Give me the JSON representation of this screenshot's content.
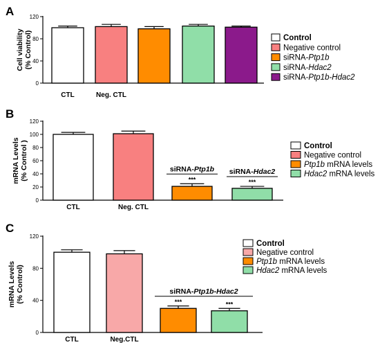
{
  "chart_data": [
    {
      "type": "bar",
      "panel_label": "A",
      "ylabel": [
        "Cell viability",
        "(% Control)"
      ],
      "ylim": [
        0,
        120
      ],
      "yticks": [
        0,
        40,
        80,
        120
      ],
      "categories": [
        "Control",
        "Negative control",
        "siRNA-Ptp1b",
        "siRNA-Hdac2",
        "siRNA-Ptp1b-Hdac2"
      ],
      "values": [
        100,
        102,
        98,
        103,
        101
      ],
      "errors": [
        3,
        4,
        4,
        3,
        2
      ],
      "colors": [
        "#ffffff",
        "#f88080",
        "#ff8c00",
        "#90dea8",
        "#8b1a8b"
      ],
      "xtick_labels": [
        {
          "text": "CTL",
          "bar": 0
        },
        {
          "text": "Neg. CTL",
          "bar": 1
        }
      ],
      "legend": [
        {
          "pre": "Control",
          "it": "",
          "post": "",
          "bold": true
        },
        {
          "pre": "Negative control",
          "it": "",
          "post": ""
        },
        {
          "pre": "siRNA-",
          "it": "Ptp1b",
          "post": ""
        },
        {
          "pre": "siRNA-",
          "it": "Hdac2",
          "post": ""
        },
        {
          "pre": "siRNA-",
          "it": "Ptp1b-Hdac2",
          "post": ""
        }
      ]
    },
    {
      "type": "bar",
      "panel_label": "B",
      "ylabel": [
        "mRNA Levels",
        "(% Control )"
      ],
      "ylim": [
        0,
        120
      ],
      "yticks": [
        0,
        20,
        40,
        60,
        80,
        100,
        120
      ],
      "categories": [
        "Control",
        "Negative control",
        "Ptp1b mRNA levels",
        "Hdac2 mRNA levels"
      ],
      "values": [
        100,
        101,
        21,
        18
      ],
      "errors": [
        3,
        4,
        4,
        3
      ],
      "significance": [
        "",
        "",
        "***",
        "***"
      ],
      "colors": [
        "#ffffff",
        "#f88080",
        "#ff8c00",
        "#90dea8"
      ],
      "xtick_labels": [
        {
          "text": "CTL",
          "bar": 0
        },
        {
          "text": "Neg. CTL",
          "bar": 1
        }
      ],
      "group_labels": [
        {
          "pre": "siRNA-",
          "it": "Ptp1b",
          "bars": [
            2,
            2
          ]
        },
        {
          "pre": "siRNA-",
          "it": "Hdac2",
          "bars": [
            3,
            3
          ]
        }
      ],
      "legend": [
        {
          "pre": "Control",
          "it": "",
          "post": "",
          "bold": true
        },
        {
          "pre": "Negative control",
          "it": "",
          "post": ""
        },
        {
          "pre": "",
          "it": "Ptp1b",
          "post": " mRNA levels"
        },
        {
          "pre": "",
          "it": "Hdac2",
          "post": " mRNA levels"
        }
      ]
    },
    {
      "type": "bar",
      "panel_label": "C",
      "ylabel": [
        "mRNA Levels",
        "(% Control)"
      ],
      "ylim": [
        0,
        120
      ],
      "yticks": [
        0,
        40,
        80,
        120
      ],
      "categories": [
        "Control",
        "Negative control",
        "Ptp1b mRNA levels",
        "Hdac2 mRNA levels"
      ],
      "values": [
        100,
        98,
        30,
        27
      ],
      "errors": [
        3,
        4,
        3,
        3
      ],
      "significance": [
        "",
        "",
        "***",
        "***"
      ],
      "colors": [
        "#ffffff",
        "#f8a8a8",
        "#ff8c00",
        "#90dea8"
      ],
      "xtick_labels": [
        {
          "text": "CTL",
          "bar": 0
        },
        {
          "text": "Neg.CTL",
          "bar": 1
        }
      ],
      "group_labels": [
        {
          "pre": "siRNA-",
          "it": "Ptp1b-Hdac2",
          "bars": [
            2,
            3
          ]
        }
      ],
      "legend": [
        {
          "pre": "Control",
          "it": "",
          "post": "",
          "bold": true
        },
        {
          "pre": "Negative control",
          "it": "",
          "post": ""
        },
        {
          "pre": "",
          "it": "Ptp1b",
          "post": " mRNA levels"
        },
        {
          "pre": "",
          "it": "Hdac2",
          "post": " mRNA levels"
        }
      ]
    }
  ]
}
